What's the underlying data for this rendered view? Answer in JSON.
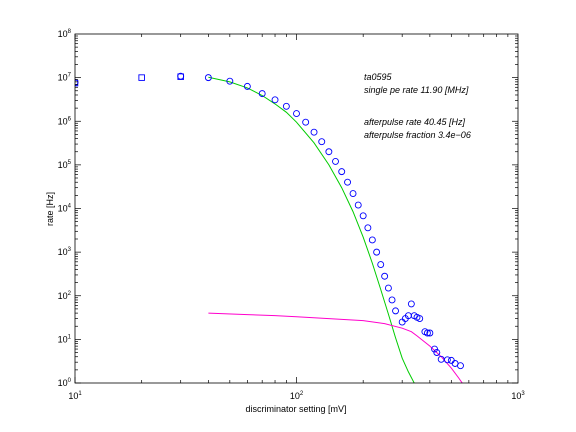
{
  "chart_data": {
    "type": "scatter",
    "title": "",
    "xlabel": "discriminator setting [mV]",
    "ylabel": "rate [Hz]",
    "xscale": "log",
    "yscale": "log",
    "xlim": [
      10,
      1000
    ],
    "ylim": [
      1,
      100000000
    ],
    "x_tick_labels": [
      {
        "value": 10,
        "base": "10",
        "exp": "1"
      },
      {
        "value": 100,
        "base": "10",
        "exp": "2"
      },
      {
        "value": 1000,
        "base": "10",
        "exp": "3"
      }
    ],
    "y_tick_labels": [
      {
        "value": 1,
        "base": "10",
        "exp": "0"
      },
      {
        "value": 10,
        "base": "10",
        "exp": "1"
      },
      {
        "value": 100,
        "base": "10",
        "exp": "2"
      },
      {
        "value": 1000,
        "base": "10",
        "exp": "3"
      },
      {
        "value": 10000,
        "base": "10",
        "exp": "4"
      },
      {
        "value": 100000,
        "base": "10",
        "exp": "5"
      },
      {
        "value": 1000000,
        "base": "10",
        "exp": "6"
      },
      {
        "value": 10000000,
        "base": "10",
        "exp": "7"
      },
      {
        "value": 100000000,
        "base": "10",
        "exp": "8"
      }
    ],
    "grid": false,
    "annotations": {
      "line1": "ta0595",
      "line2": "single pe rate 11.90 [MHz]",
      "line3": "afterpulse rate 40.45 [Hz]",
      "line4": "afterpulse fraction 3.4e−06"
    },
    "series": [
      {
        "marker": "square",
        "color": "#0000ff",
        "points": [
          [
            10,
            7500000
          ],
          [
            20,
            10000000
          ],
          [
            30,
            10500000
          ]
        ]
      },
      {
        "marker": "circle",
        "color": "#0000ff",
        "points": [
          [
            10,
            7800000
          ],
          [
            30,
            10800000
          ],
          [
            40,
            10000000
          ],
          [
            50,
            8300000
          ],
          [
            60,
            6300000
          ],
          [
            70,
            4300000
          ],
          [
            80,
            3100000
          ],
          [
            90,
            2200000
          ],
          [
            100,
            1500000
          ],
          [
            110,
            950000
          ],
          [
            120,
            560000
          ],
          [
            130,
            340000
          ],
          [
            140,
            200000
          ],
          [
            150,
            120000
          ],
          [
            160,
            70000
          ],
          [
            170,
            40000
          ],
          [
            180,
            22000
          ],
          [
            190,
            12000
          ],
          [
            200,
            6800
          ],
          [
            210,
            3600
          ],
          [
            220,
            1900
          ],
          [
            230,
            1000
          ],
          [
            240,
            520
          ],
          [
            250,
            280
          ],
          [
            260,
            150
          ],
          [
            270,
            80
          ],
          [
            280,
            45
          ],
          [
            300,
            25
          ],
          [
            310,
            30
          ],
          [
            320,
            35
          ],
          [
            330,
            65
          ],
          [
            340,
            35
          ],
          [
            350,
            32
          ],
          [
            360,
            30
          ],
          [
            380,
            15
          ],
          [
            390,
            14
          ],
          [
            400,
            14
          ],
          [
            420,
            6
          ],
          [
            430,
            5
          ],
          [
            450,
            3.5
          ],
          [
            480,
            3.4
          ],
          [
            500,
            3.3
          ],
          [
            520,
            2.8
          ],
          [
            550,
            2.5
          ]
        ]
      },
      {
        "type": "line",
        "color": "#00cc00",
        "points": [
          [
            40,
            10200000
          ],
          [
            50,
            8000000
          ],
          [
            60,
            5800000
          ],
          [
            70,
            3900000
          ],
          [
            80,
            2500000
          ],
          [
            90,
            1600000
          ],
          [
            100,
            950000
          ],
          [
            120,
            320000
          ],
          [
            140,
            100000
          ],
          [
            160,
            30000
          ],
          [
            180,
            8500
          ],
          [
            200,
            2200
          ],
          [
            220,
            560
          ],
          [
            240,
            140
          ],
          [
            260,
            38
          ],
          [
            280,
            11
          ],
          [
            300,
            3.7
          ],
          [
            320,
            1.8
          ],
          [
            340,
            1
          ]
        ]
      },
      {
        "type": "line",
        "color": "#ff00cc",
        "points": [
          [
            40,
            40
          ],
          [
            60,
            37
          ],
          [
            80,
            35
          ],
          [
            100,
            33
          ],
          [
            140,
            30
          ],
          [
            200,
            27
          ],
          [
            250,
            23
          ],
          [
            300,
            18
          ],
          [
            330,
            15
          ],
          [
            350,
            12
          ],
          [
            400,
            7
          ],
          [
            450,
            4
          ],
          [
            500,
            2.2
          ],
          [
            540,
            1.3
          ],
          [
            560,
            1
          ]
        ]
      }
    ]
  }
}
